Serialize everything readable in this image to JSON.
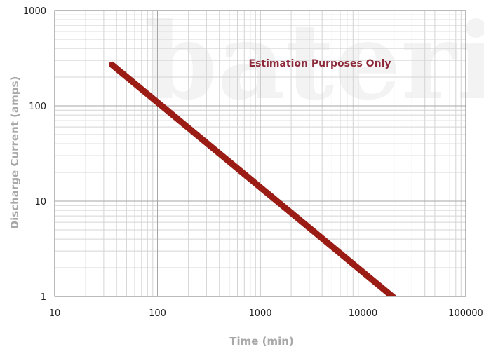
{
  "chart_data": {
    "type": "line",
    "xlabel": "Time (min)",
    "ylabel": "Discharge Current (amps)",
    "xscale": "log",
    "yscale": "log",
    "xlim": [
      10,
      100000
    ],
    "ylim": [
      1,
      1000
    ],
    "x_tick_labels": [
      "10",
      "100",
      "1000",
      "10000",
      "100000"
    ],
    "y_tick_labels": [
      "1",
      "10",
      "100",
      "1000"
    ],
    "grid": true,
    "annotation": "Estimation Purposes Only",
    "watermark": "bateria",
    "series": [
      {
        "x": [
          36,
          20000
        ],
        "y": [
          270,
          0.97
        ],
        "color": "#9b1c14"
      }
    ]
  }
}
